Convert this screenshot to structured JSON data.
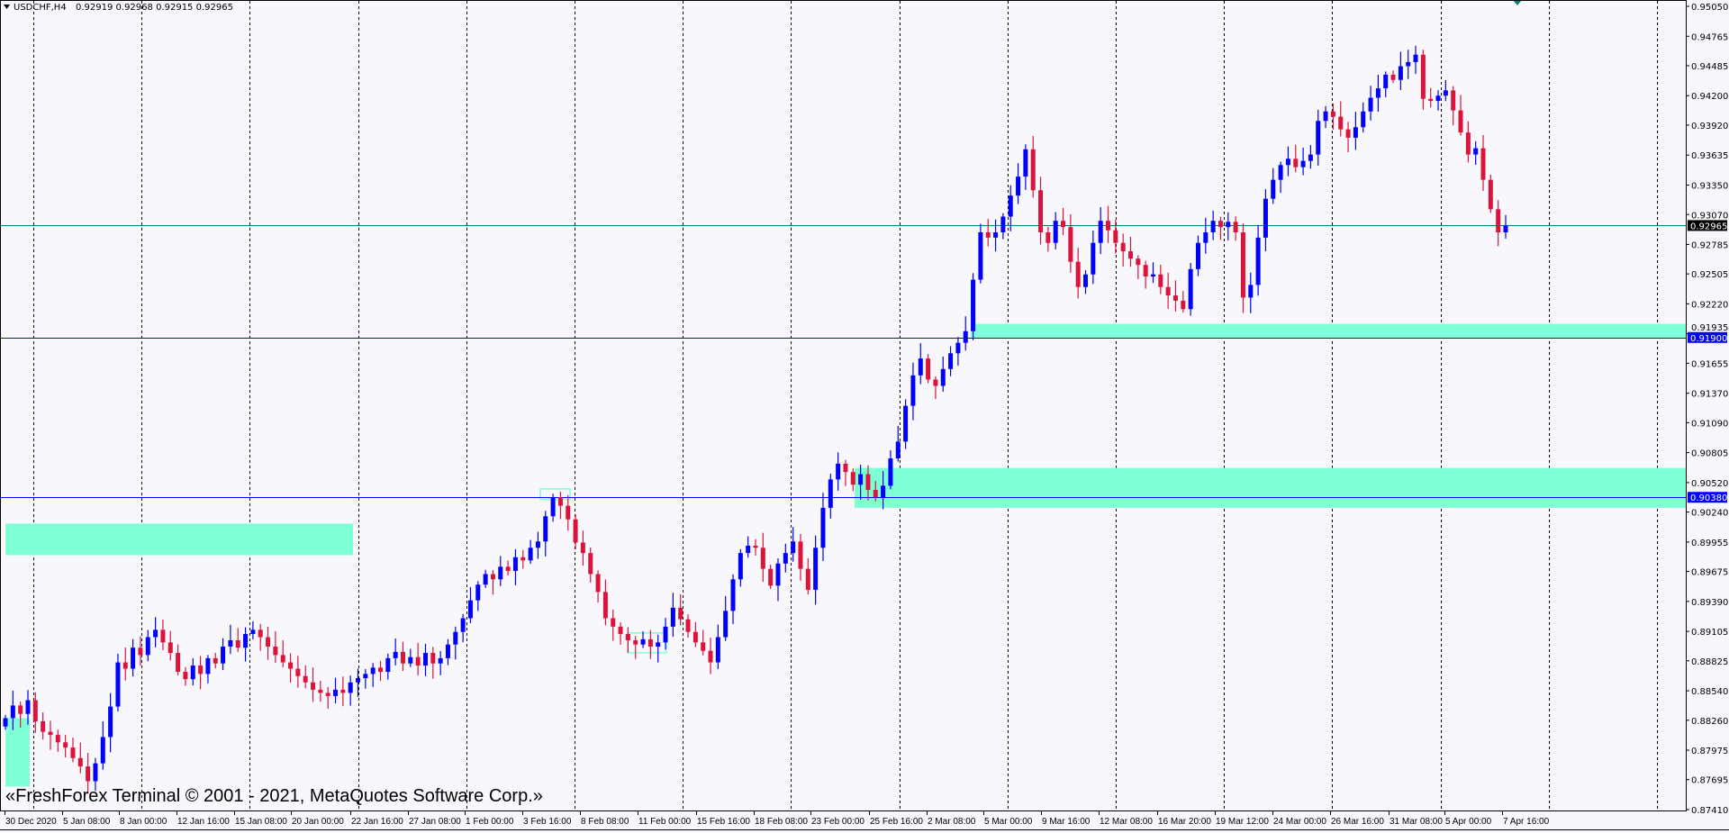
{
  "header": {
    "symbol_timeframe": "USDCHF,H4",
    "quote": "0.92919 0.92968 0.92915 0.92965",
    "menu_icon": "triangle-down-icon"
  },
  "watermark": "«FreshForex Terminal © 2001 - 2021, MetaQuotes Software Corp.»",
  "colors": {
    "background": "#f8f8fc",
    "bull": "#0000ff",
    "bear": "#dc143c",
    "zone": "#7fffd4",
    "level_line": "#0000ff",
    "bid_line": "#008080",
    "grid": "#000000"
  },
  "chart_data": {
    "type": "candlestick",
    "symbol": "USDCHF",
    "timeframe": "H4",
    "ylim": [
      0.8741,
      0.9505
    ],
    "grid": true,
    "price_ticks": [
      "0.95050",
      "0.94765",
      "0.94485",
      "0.94200",
      "0.93920",
      "0.93635",
      "0.93350",
      "0.93070",
      "0.92785",
      "0.92505",
      "0.92220",
      "0.91935",
      "0.91655",
      "0.91370",
      "0.91090",
      "0.90805",
      "0.90520",
      "0.90240",
      "0.89955",
      "0.89675",
      "0.89390",
      "0.89105",
      "0.88825",
      "0.88540",
      "0.88260",
      "0.87975",
      "0.87695",
      "0.87410"
    ],
    "time_ticks": [
      "30 Dec 2020",
      "5 Jan 08:00",
      "8 Jan 00:00",
      "12 Jan 16:00",
      "15 Jan 08:00",
      "20 Jan 00:00",
      "22 Jan 16:00",
      "27 Jan 08:00",
      "1 Feb 00:00",
      "3 Feb 16:00",
      "8 Feb 08:00",
      "11 Feb 00:00",
      "15 Feb 16:00",
      "18 Feb 08:00",
      "23 Feb 00:00",
      "25 Feb 16:00",
      "2 Mar 08:00",
      "5 Mar 00:00",
      "9 Mar 16:00",
      "12 Mar 08:00",
      "16 Mar 20:00",
      "19 Mar 12:00",
      "24 Mar 00:00",
      "26 Mar 16:00",
      "31 Mar 08:00",
      "5 Apr 00:00",
      "7 Apr 16:00"
    ],
    "closes": [
      0.8828,
      0.884,
      0.8832,
      0.8845,
      0.8825,
      0.8815,
      0.8812,
      0.8805,
      0.88,
      0.879,
      0.8782,
      0.8768,
      0.8785,
      0.881,
      0.8839,
      0.8881,
      0.8875,
      0.8895,
      0.8888,
      0.8905,
      0.8912,
      0.89,
      0.889,
      0.8872,
      0.8865,
      0.8878,
      0.887,
      0.8885,
      0.888,
      0.8896,
      0.8902,
      0.8895,
      0.8908,
      0.8912,
      0.8905,
      0.8896,
      0.8888,
      0.8881,
      0.8875,
      0.8868,
      0.8862,
      0.8855,
      0.8852,
      0.8849,
      0.8855,
      0.8852,
      0.8862,
      0.8866,
      0.887,
      0.8876,
      0.8872,
      0.8885,
      0.8891,
      0.888,
      0.8886,
      0.8878,
      0.889,
      0.888,
      0.8885,
      0.8898,
      0.891,
      0.8923,
      0.894,
      0.8955,
      0.8965,
      0.896,
      0.8972,
      0.8968,
      0.8981,
      0.8978,
      0.899,
      0.8996,
      0.902,
      0.9038,
      0.903,
      0.9017,
      0.8995,
      0.8985,
      0.8965,
      0.8948,
      0.8923,
      0.8915,
      0.8908,
      0.8902,
      0.8898,
      0.8903,
      0.8896,
      0.89,
      0.8915,
      0.8933,
      0.8922,
      0.891,
      0.89,
      0.8892,
      0.8881,
      0.8905,
      0.893,
      0.896,
      0.8985,
      0.8992,
      0.899,
      0.897,
      0.8954,
      0.8975,
      0.8985,
      0.8996,
      0.897,
      0.895,
      0.899,
      0.9028,
      0.9055,
      0.907,
      0.9062,
      0.905,
      0.906,
      0.9045,
      0.9038,
      0.9049,
      0.9075,
      0.9091,
      0.9125,
      0.9154,
      0.917,
      0.915,
      0.9144,
      0.916,
      0.9175,
      0.9185,
      0.9196,
      0.9245,
      0.929,
      0.9285,
      0.929,
      0.9305,
      0.9325,
      0.9343,
      0.9369,
      0.933,
      0.929,
      0.928,
      0.9301,
      0.9295,
      0.9262,
      0.9238,
      0.925,
      0.928,
      0.9301,
      0.9292,
      0.928,
      0.9272,
      0.9265,
      0.9259,
      0.9248,
      0.925,
      0.9238,
      0.923,
      0.9225,
      0.9217,
      0.9255,
      0.928,
      0.929,
      0.9301,
      0.9295,
      0.93,
      0.929,
      0.9228,
      0.924,
      0.9285,
      0.9322,
      0.934,
      0.9354,
      0.936,
      0.9352,
      0.9358,
      0.9364,
      0.9396,
      0.9405,
      0.94,
      0.9388,
      0.938,
      0.939,
      0.9405,
      0.9418,
      0.9427,
      0.944,
      0.9435,
      0.9448,
      0.9452,
      0.9459,
      0.9417,
      0.9415,
      0.942,
      0.9425,
      0.9406,
      0.9385,
      0.9364,
      0.937,
      0.934,
      0.9312,
      0.929,
      0.92965
    ],
    "horizontal_levels": [
      {
        "price": 0.919,
        "label": "0.91900",
        "kind": "level"
      },
      {
        "price": 0.9038,
        "label": "0.90380",
        "kind": "level"
      },
      {
        "price": 0.92965,
        "label": "0.92965",
        "kind": "bid"
      }
    ],
    "zones": [
      {
        "from": "5 Mar 00:00",
        "to": "right-edge",
        "price_top": 0.9203,
        "price_bottom": 0.9189,
        "style": "filled"
      },
      {
        "from": "24 Feb",
        "to": "right-edge",
        "price_top": 0.9066,
        "price_bottom": 0.9028,
        "style": "filled"
      },
      {
        "from": "30 Dec 2020",
        "to": "22 Jan 16:00",
        "price_top": 0.9013,
        "price_bottom": 0.8983,
        "style": "filled"
      },
      {
        "from": "30 Dec 2020",
        "to": "31 Dec 2020",
        "price_top": 0.8828,
        "price_bottom": 0.8763,
        "style": "filled"
      },
      {
        "from": "4 Feb",
        "to": "5 Feb",
        "price_top": 0.9046,
        "price_bottom": 0.9036,
        "style": "outline"
      },
      {
        "from": "10 Feb",
        "to": "12 Feb",
        "price_top": 0.8909,
        "price_bottom": 0.889,
        "style": "outline"
      }
    ]
  }
}
